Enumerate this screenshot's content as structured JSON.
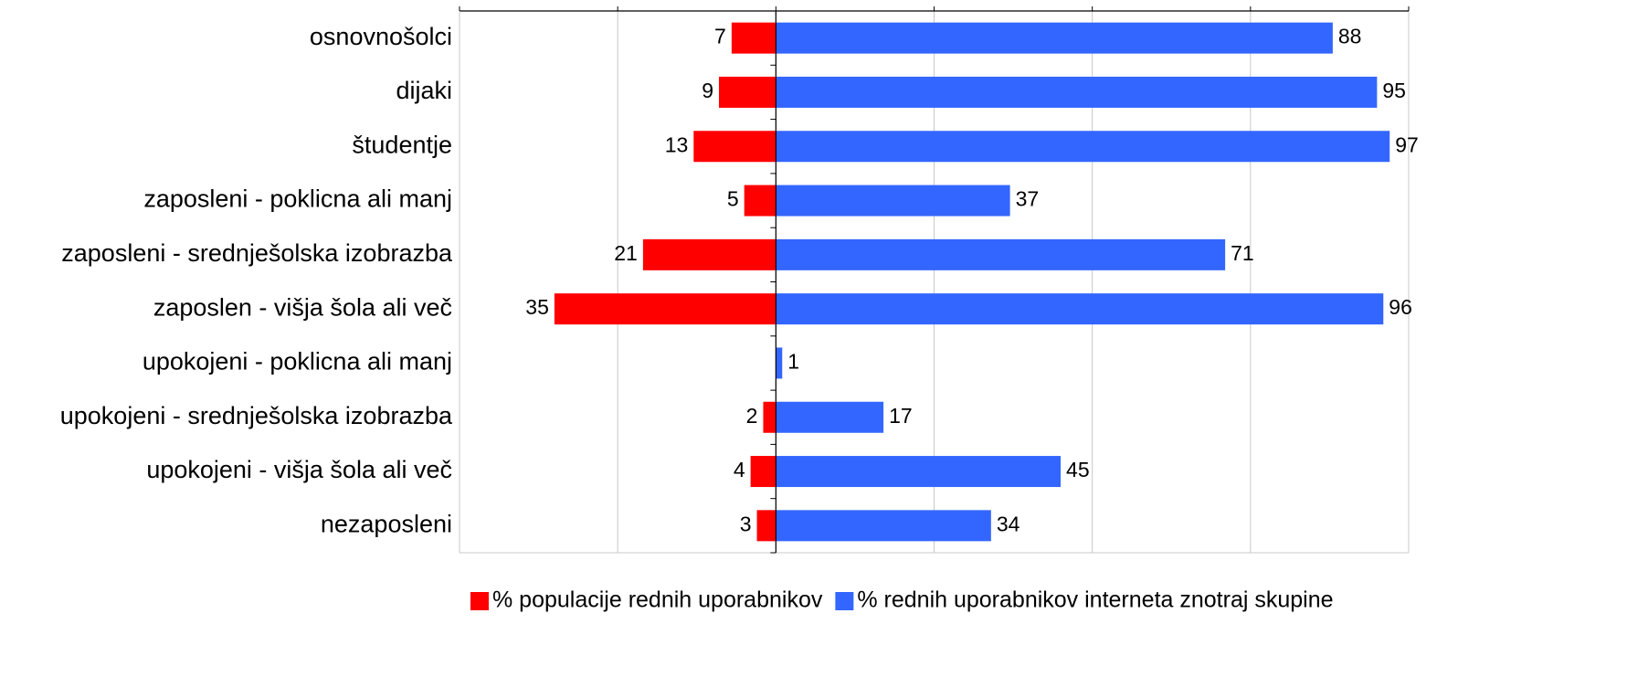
{
  "chart_data": {
    "type": "butterfly-bar",
    "categories": [
      "osnovnošolci",
      "dijaki",
      "študentje",
      "zaposleni - poklicna ali manj",
      "zaposleni - srednješolska izobrazba",
      "zaposlen - višja šola ali več",
      "upokojeni - poklicna ali manj",
      "upokojeni - srednješolska izobrazba",
      "upokojeni - višja šola ali več",
      "nezaposleni"
    ],
    "series": [
      {
        "name": "% populacije rednih uporabnikov",
        "color": "#ff0000",
        "values": [
          -7,
          -9,
          -13,
          -5,
          -21,
          -35,
          0,
          -2,
          -4,
          -3
        ],
        "value_labels": [
          "7",
          "9",
          "13",
          "5",
          "21",
          "35",
          null,
          "2",
          "4",
          "3"
        ]
      },
      {
        "name": "% rednih uporabnikov interneta znotraj skupine",
        "color": "#3366ff",
        "values": [
          88,
          95,
          97,
          37,
          71,
          96,
          1,
          17,
          45,
          34
        ]
      }
    ],
    "xlim": [
      -50,
      100
    ],
    "xticks": [
      -50,
      -25,
      0,
      25,
      50,
      75,
      100
    ],
    "grid": true,
    "legend": "bottom"
  }
}
